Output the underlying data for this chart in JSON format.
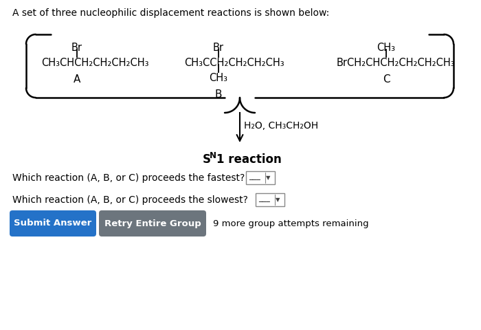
{
  "title": "A set of three nucleophilic displacement reactions is shown below:",
  "bg_color": "#ffffff",
  "mol_A_br": "Br",
  "mol_A_chain": "CH₃CHCH₂CH₂CH₂CH₃",
  "mol_A_label": "A",
  "mol_B_br": "Br",
  "mol_B_chain": "CH₃CCH₂CH₂CH₂CH₃",
  "mol_B_sub": "CH₃",
  "mol_B_label": "B",
  "mol_C_top": "CH₃",
  "mol_C_chain": "BrCH₂CHCH₂CH₂CH₂CH₃",
  "mol_C_label": "C",
  "arrow_label": "H₂O, CH₃CH₂OH",
  "sn1_S": "S",
  "sn1_N": "N",
  "sn1_rest": "1 reaction",
  "question1": "Which reaction (A, B, or C) proceeds the fastest?",
  "question2": "Which reaction (A, B, or C) proceeds the slowest?",
  "btn1_text": "Submit Answer",
  "btn1_color": "#2472c8",
  "btn2_text": "Retry Entire Group",
  "btn2_color": "#6c757d",
  "attempts_text": "9 more group attempts remaining"
}
